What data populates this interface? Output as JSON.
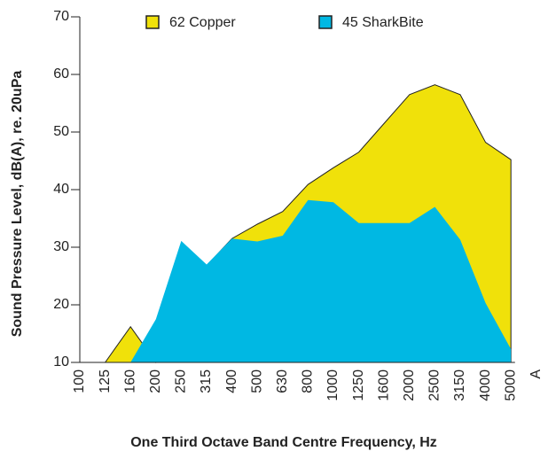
{
  "chart_data": {
    "type": "area",
    "xlabel": "One Third Octave Band Centre Frequency, Hz",
    "ylabel": "Sound Pressure Level, dB(A), re. 20uPa",
    "categories": [
      "100",
      "125",
      "160",
      "200",
      "250",
      "315",
      "400",
      "500",
      "630",
      "800",
      "1000",
      "1250",
      "1600",
      "2000",
      "2500",
      "3150",
      "4000",
      "5000",
      "A"
    ],
    "series": [
      {
        "name": "62 Copper",
        "color": "#f0e10a",
        "values": [
          10,
          10,
          16.2,
          10,
          21.8,
          26.8,
          31.5,
          34,
          36.2,
          40.9,
          43.8,
          46.5,
          51.5,
          56.5,
          58.2,
          56.5,
          48.2,
          45.2,
          null
        ]
      },
      {
        "name": "45 SharkBite",
        "color": "#00b8e3",
        "values": [
          null,
          null,
          10,
          17.5,
          31.1,
          27,
          31.5,
          31,
          32,
          38.2,
          37.8,
          34.2,
          34.2,
          34.2,
          37,
          31.3,
          20.3,
          12.3,
          null
        ]
      }
    ],
    "ylim": [
      10,
      70
    ],
    "yticks": [
      10,
      20,
      30,
      40,
      50,
      60,
      70
    ],
    "legend": "top",
    "grid": false
  }
}
